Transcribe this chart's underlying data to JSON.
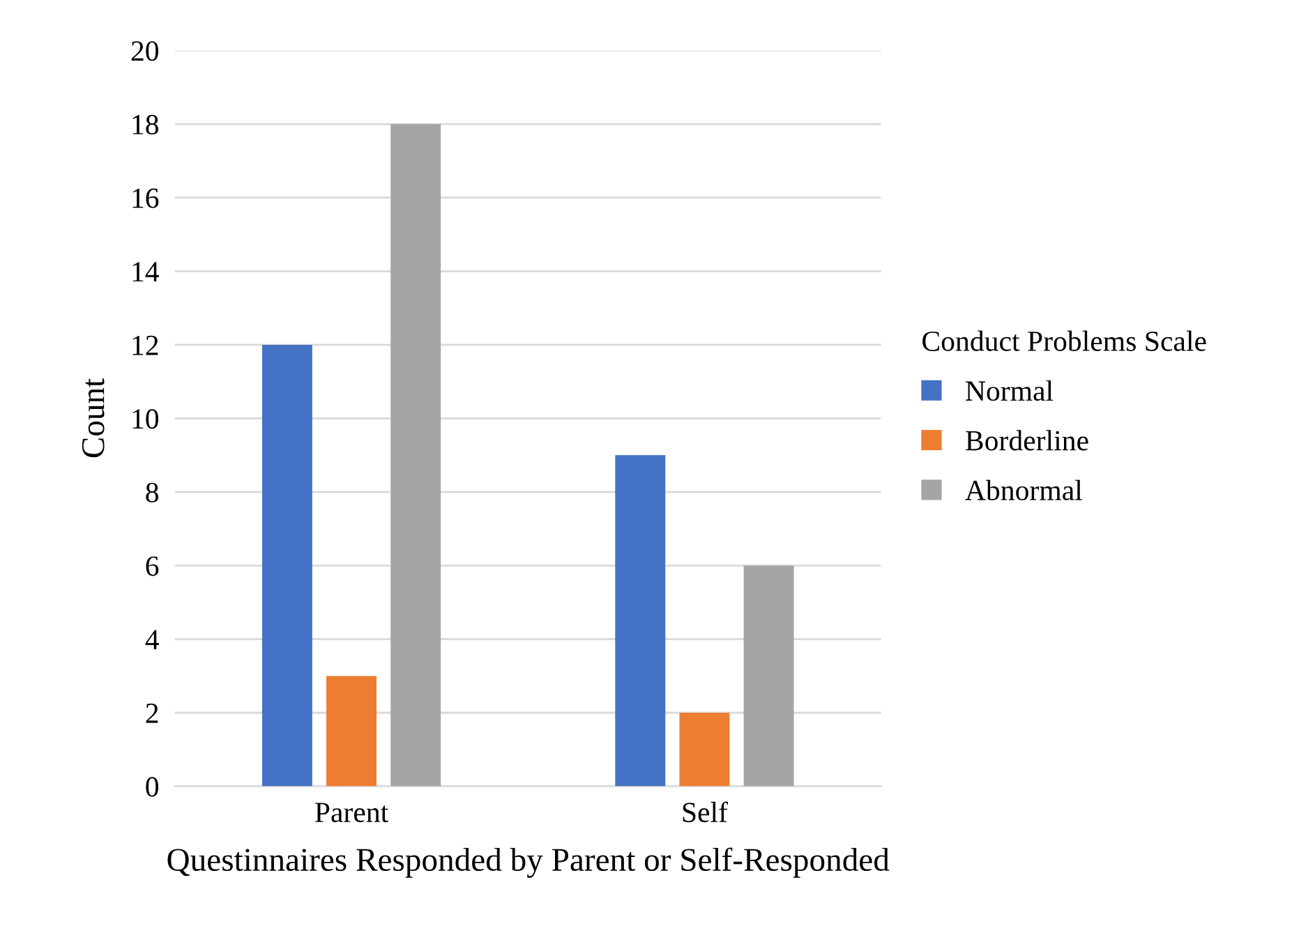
{
  "chart_data": {
    "type": "bar",
    "categories": [
      "Parent",
      "Self"
    ],
    "xlabel": "Questinnaires Responded by Parent or Self-Responded",
    "ylabel": "Count",
    "legend_title": "Conduct Problems Scale",
    "legend": "right",
    "grid": "y",
    "ylim": [
      0,
      20
    ],
    "yticks": [
      0,
      2,
      4,
      6,
      8,
      10,
      12,
      14,
      16,
      18,
      20
    ],
    "series": [
      {
        "name": "Normal",
        "color": "#4472c4",
        "values": [
          12,
          9
        ]
      },
      {
        "name": "Borderline",
        "color": "#ed7d31",
        "values": [
          3,
          2
        ]
      },
      {
        "name": "Abnormal",
        "color": "#a5a5a5",
        "values": [
          18,
          6
        ]
      }
    ]
  }
}
